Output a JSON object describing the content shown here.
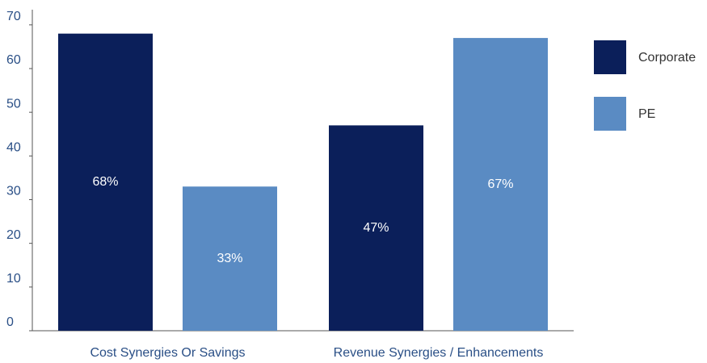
{
  "chart_data": {
    "type": "bar",
    "categories": [
      "Cost Synergies Or Savings",
      "Revenue Synergies / Enhancements"
    ],
    "series": [
      {
        "name": "Corporate",
        "color": "#0b1f5a",
        "values": [
          68,
          47
        ],
        "value_labels": [
          "68%",
          "47%"
        ]
      },
      {
        "name": "PE",
        "color": "#5a8bc3",
        "values": [
          33,
          67
        ],
        "value_labels": [
          "33%",
          "67%"
        ]
      }
    ],
    "ylim": [
      0,
      72
    ],
    "yticks": [
      0,
      10,
      20,
      30,
      40,
      50,
      60,
      70
    ],
    "grid": false,
    "legend": "right"
  }
}
